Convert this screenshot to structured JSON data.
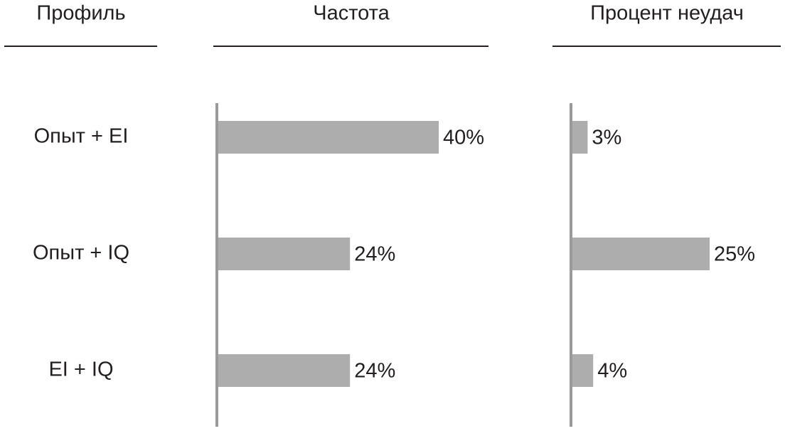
{
  "chart_data": {
    "type": "bar",
    "xlabel": "Профиль",
    "categories": [
      "Опыт + EI",
      "Опыт + IQ",
      "EI + IQ"
    ],
    "series": [
      {
        "name": "Частота",
        "color": "#adadad",
        "values": [
          40,
          24,
          24
        ],
        "value_labels": [
          "40%",
          "24%",
          "24%"
        ]
      },
      {
        "name": "Процент неудач",
        "color": "#adadad",
        "values": [
          3,
          25,
          4
        ],
        "value_labels": [
          "3%",
          "25%",
          "4%"
        ]
      }
    ]
  }
}
